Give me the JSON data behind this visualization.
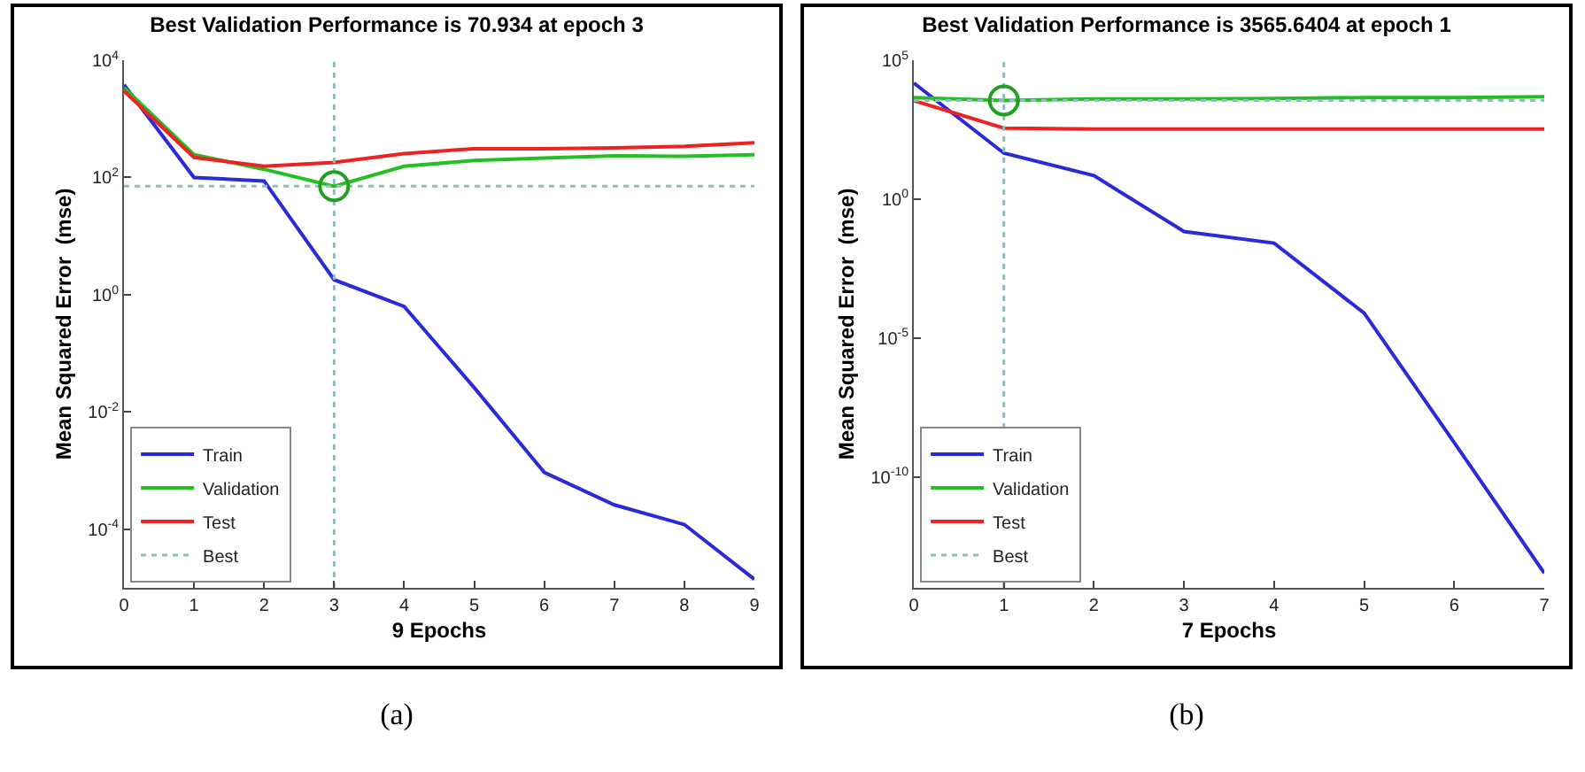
{
  "chart_data": [
    {
      "type": "line",
      "title": "Best Validation Performance is 70.934 at epoch 3",
      "xlabel": "9 Epochs",
      "ylabel": "Mean Squared Error  (mse)",
      "x": [
        0,
        1,
        2,
        3,
        4,
        5,
        6,
        7,
        8,
        9
      ],
      "xlim": [
        0,
        9
      ],
      "xticks": [
        0,
        1,
        2,
        3,
        4,
        5,
        6,
        7,
        8,
        9
      ],
      "ylim": [
        1e-05,
        10000
      ],
      "yticks": [
        {
          "value": 0.0001,
          "label": "10$^{-4}$"
        },
        {
          "value": 0.01,
          "label": "10$^{-2}$"
        },
        {
          "value": 1,
          "label": "10$^{0}$"
        },
        {
          "value": 100,
          "label": "10$^{2}$"
        },
        {
          "value": 10000,
          "label": "10$^{4}$"
        }
      ],
      "log": "y",
      "legend": "bottom left",
      "marker": "none",
      "line_style": "solid",
      "series": [
        {
          "name": "Train",
          "color": "#2a2ad8",
          "values": [
            3800,
            100,
            87,
            1.8,
            0.63,
            0.026,
            0.00093,
            0.00026,
            0.00012,
            1.4e-05
          ]
        },
        {
          "name": "Validation",
          "color": "#22c022",
          "values": [
            3400,
            245,
            138,
            70.934,
            155,
            195,
            215,
            235,
            230,
            245
          ]
        },
        {
          "name": "Test",
          "color": "#ee2222",
          "values": [
            3000,
            220,
            155,
            180,
            255,
            310,
            310,
            320,
            340,
            390
          ]
        },
        {
          "type": "scatter",
          "marker": "circle",
          "color": "#22a022",
          "x": [
            3
          ],
          "values": [
            70.934
          ]
        }
      ],
      "ref_lines": [
        {
          "axis": "y",
          "value": 70.934,
          "label": "Best",
          "color": "#8fbcbc",
          "line_style": "dotted"
        },
        {
          "axis": "x",
          "value": 3,
          "color": "#8fbcbc",
          "line_style": "dotted"
        }
      ],
      "annotations": [
        "(a)"
      ]
    },
    {
      "type": "line",
      "title": "Best Validation Performance is 3565.6404 at epoch 1",
      "xlabel": "7 Epochs",
      "ylabel": "Mean Squared Error  (mse)",
      "x": [
        0,
        1,
        2,
        3,
        4,
        5,
        6,
        7
      ],
      "xlim": [
        0,
        7
      ],
      "xticks": [
        0,
        1,
        2,
        3,
        4,
        5,
        6,
        7
      ],
      "ylim": [
        1e-14,
        100000
      ],
      "yticks": [
        {
          "value": 1e-10,
          "label": "10$^{-10}$"
        },
        {
          "value": 1e-05,
          "label": "10$^{-5}$"
        },
        {
          "value": 1,
          "label": "10$^{0}$"
        },
        {
          "value": 100000,
          "label": "10$^{5}$"
        }
      ],
      "log": "y",
      "legend": "bottom left",
      "marker": "none",
      "line_style": "solid",
      "series": [
        {
          "name": "Train",
          "color": "#2a2ad8",
          "values": [
            15000,
            45,
            7,
            0.068,
            0.026,
            7.8e-05,
            1.7e-09,
            3.4e-14
          ]
        },
        {
          "name": "Validation",
          "color": "#22c022",
          "values": [
            4500,
            3565.6404,
            4000,
            4000,
            4200,
            4500,
            4500,
            4800
          ]
        },
        {
          "name": "Test",
          "color": "#ee2222",
          "values": [
            3500,
            360,
            330,
            330,
            330,
            330,
            330,
            330
          ]
        },
        {
          "type": "scatter",
          "marker": "circle",
          "color": "#22a022",
          "x": [
            1
          ],
          "values": [
            3565.6404
          ]
        }
      ],
      "ref_lines": [
        {
          "axis": "y",
          "value": 3565.6404,
          "label": "Best",
          "color": "#8fbcbc",
          "line_style": "dotted"
        },
        {
          "axis": "x",
          "value": 1,
          "color": "#8fbcbc",
          "line_style": "dotted"
        }
      ],
      "annotations": [
        "(b)"
      ]
    }
  ]
}
